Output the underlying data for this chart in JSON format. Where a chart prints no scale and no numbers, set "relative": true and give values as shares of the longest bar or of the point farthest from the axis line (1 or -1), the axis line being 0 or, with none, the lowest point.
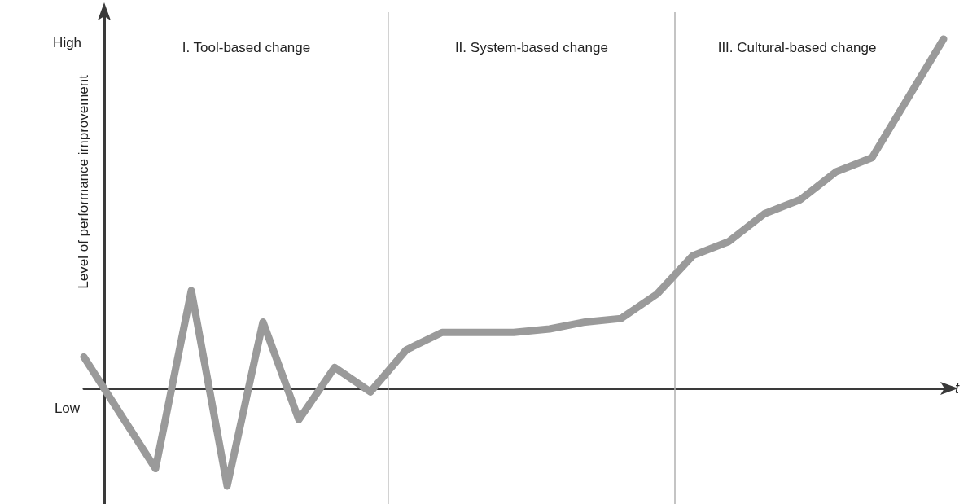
{
  "chart_data": {
    "type": "line",
    "relative": true,
    "xlabel": "t",
    "ylabel": "Level of performance improvement",
    "categories": [
      null,
      null,
      null,
      null,
      null,
      null,
      null,
      null,
      null,
      null,
      null,
      null,
      null,
      null,
      null,
      null,
      null,
      null,
      null,
      null,
      null,
      null,
      null,
      null,
      null
    ],
    "series": [
      {
        "color": "#9a9a9a",
        "values": [
          0.09,
          -0.07,
          -0.23,
          0.28,
          -0.28,
          0.19,
          -0.09,
          0.06,
          -0.01,
          0.11,
          0.16,
          0.16,
          0.16,
          0.17,
          0.19,
          0.2,
          0.27,
          0.38,
          0.42,
          0.5,
          0.54,
          0.62,
          0.66,
          0.83,
          1
        ]
      }
    ],
    "annotations": [
      "High",
      "Low",
      "I. Tool-based change",
      "II. System-based change",
      "III. Cultural-based change"
    ],
    "tick_labels": false,
    "grid": false,
    "line_style": "solid"
  }
}
